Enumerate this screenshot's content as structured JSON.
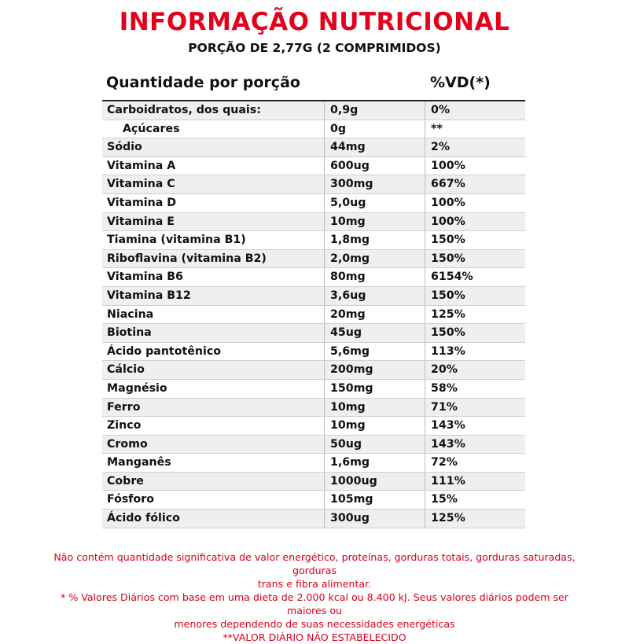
{
  "header": {
    "title": "INFORMAÇÃO NUTRICIONAL",
    "subtitle": "PORÇÃO DE 2,77G (2 COMPRIMIDOS)"
  },
  "table": {
    "col_amount_label": "Quantidade por porção",
    "col_vd_label": "%VD(*)",
    "rows": [
      {
        "name": "Carboidratos, dos quais:",
        "qty": "0,9g",
        "vd": "0%"
      },
      {
        "name": "Açúcares",
        "qty": "0g",
        "vd": "**"
      },
      {
        "name": "Sódio",
        "qty": "44mg",
        "vd": "2%"
      },
      {
        "name": "Vitamina A",
        "qty": "600ug",
        "vd": "100%"
      },
      {
        "name": "Vitamina C",
        "qty": "300mg",
        "vd": "667%"
      },
      {
        "name": "Vitamina D",
        "qty": "5,0ug",
        "vd": "100%"
      },
      {
        "name": "Vitamina E",
        "qty": "10mg",
        "vd": "100%"
      },
      {
        "name": "Tiamina (vitamina B1)",
        "qty": "1,8mg",
        "vd": "150%"
      },
      {
        "name": "Riboflavina (vitamina B2)",
        "qty": "2,0mg",
        "vd": "150%"
      },
      {
        "name": "Vitamina B6",
        "qty": "80mg",
        "vd": "6154%"
      },
      {
        "name": "Vitamina B12",
        "qty": "3,6ug",
        "vd": "150%"
      },
      {
        "name": "Niacina",
        "qty": "20mg",
        "vd": "125%"
      },
      {
        "name": "Biotina",
        "qty": "45ug",
        "vd": "150%"
      },
      {
        "name": "Ácido pantotênico",
        "qty": "5,6mg",
        "vd": "113%"
      },
      {
        "name": "Cálcio",
        "qty": "200mg",
        "vd": "20%"
      },
      {
        "name": "Magnésio",
        "qty": "150mg",
        "vd": "58%"
      },
      {
        "name": "Ferro",
        "qty": "10mg",
        "vd": "71%"
      },
      {
        "name": "Zinco",
        "qty": "10mg",
        "vd": "143%"
      },
      {
        "name": "Cromo",
        "qty": "50ug",
        "vd": "143%"
      },
      {
        "name": "Manganês",
        "qty": "1,6mg",
        "vd": "72%"
      },
      {
        "name": "Cobre",
        "qty": "1000ug",
        "vd": "111%"
      },
      {
        "name": "Fósforo",
        "qty": "105mg",
        "vd": "15%"
      },
      {
        "name": "Ácido fólico",
        "qty": "300ug",
        "vd": "125%"
      }
    ]
  },
  "footer": {
    "note_line1": "Não contém quantidade significativa de valor energético, proteínas, gorduras totais, gorduras saturadas, gorduras",
    "note_line2": "trans e fibra alimentar.",
    "note_line3": "* % Valores Diários com base em uma dieta de 2.000 kcal ou 8.400 kJ. Seus valores diários podem ser maiores ou",
    "note_line4": "menores dependendo de suas necessidades energéticas",
    "note_line5": "**VALOR DIÁRIO NÃO ESTABELECIDO"
  },
  "colors": {
    "accent_red": "#e3001b",
    "row_shade": "#efefef"
  }
}
